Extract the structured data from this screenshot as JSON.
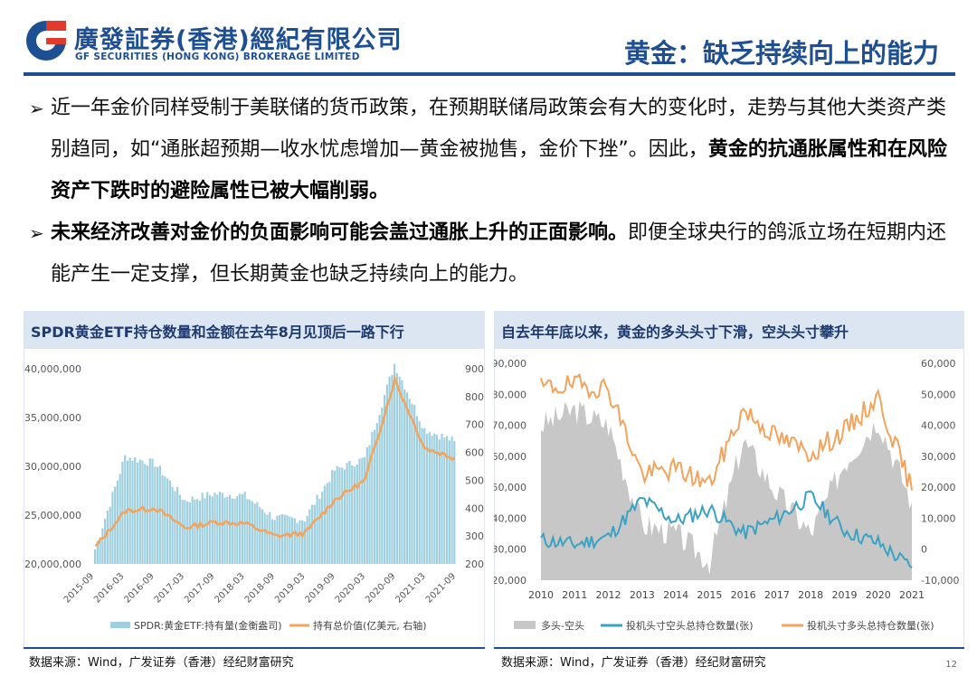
{
  "header": {
    "logo_cn": "廣發証券(香港)經紀有限公司",
    "logo_en": "GF SECURITIES (HONG KONG) BROKERAGE LIMITED",
    "title": "黄金：缺乏持续向上的能力"
  },
  "bullets": [
    {
      "marker": "➢",
      "plain_before": "近一年金价同样受制于美联储的货币政策，在预期联储局政策会有大的变化时，走势与其他大类资产类别趋同，如“通胀超预期—收水忧虑增加—黄金被抛售，金价下挫”。因此，",
      "bold": "黄金的抗通胀属性和在风险资产下跌时的避险属性已被大幅削弱。",
      "plain_after": ""
    },
    {
      "marker": "➢",
      "plain_before": "",
      "bold": "未来经济改善对金价的负面影响可能会盖过通胀上升的正面影响。",
      "plain_after": "即便全球央行的鸽派立场在短期内还能产生一定支撑，但长期黄金也缺乏持续向上的能力。"
    }
  ],
  "panels": {
    "left_title": "SPDR黄金ETF持仓数量和金额在去年8月见顶后一路下行",
    "right_title": "自去年年底以来，黄金的多头头寸下滑，空头头寸攀升",
    "left_source": "数据来源：Wind，广发证券（香港）经纪财富研究",
    "right_source": "数据来源：Wind，广发证券（香港）经纪财富研究"
  },
  "page_number": "12",
  "colors": {
    "brand_blue": "#1e4f93",
    "bar_teal": "#9fd0df",
    "line_orange": "#f3a35c",
    "gray_area": "#c7c7c7",
    "line_blue": "#3aa2c4"
  },
  "chart_data": [
    {
      "type": "bar",
      "title": "SPDR黄金ETF持仓数量和金额在去年8月见顶后一路下行",
      "ylim_left": [
        20000000,
        40000000
      ],
      "ylim_right": [
        200,
        900
      ],
      "y_ticks_left": [
        "20,000,000",
        "25,000,000",
        "30,000,000",
        "35,000,000",
        "40,000,000"
      ],
      "y_ticks_right": [
        "200",
        "300",
        "400",
        "500",
        "600",
        "700",
        "800",
        "900"
      ],
      "categories": [
        "2015-09",
        "2016-03",
        "2016-09",
        "2017-03",
        "2017-09",
        "2018-03",
        "2018-09",
        "2019-03",
        "2019-09",
        "2020-03",
        "2020-09",
        "2021-03",
        "2021-09"
      ],
      "series": [
        {
          "name": "SPDR:黄金ETF:持有量(金衡盎司)",
          "axis": "left",
          "render": "bar",
          "values": [
            21500000,
            31000000,
            30300000,
            26500000,
            27200000,
            27000000,
            24700000,
            24600000,
            29600000,
            30800000,
            40500000,
            33800000,
            32600000
          ]
        },
        {
          "name": "持有总价值(亿美元, 右轴)",
          "axis": "right",
          "render": "line",
          "values": [
            260,
            390,
            400,
            330,
            350,
            345,
            300,
            310,
            430,
            500,
            860,
            615,
            580
          ]
        }
      ]
    },
    {
      "type": "area",
      "title": "自去年年底以来，黄金的多头头寸下滑，空头头寸攀升",
      "ylim_left": [
        20000,
        90000
      ],
      "ylim_right": [
        -10000,
        60000
      ],
      "y_ticks_left": [
        "20,000",
        "30,000",
        "40,000",
        "50,000",
        "60,000",
        "70,000",
        "80,000",
        "90,000"
      ],
      "y_ticks_right": [
        "-10,000",
        "0",
        "10,000",
        "20,000",
        "30,000",
        "40,000",
        "50,000",
        "60,000"
      ],
      "categories": [
        "2010",
        "2011",
        "2012",
        "2013",
        "2014",
        "2015",
        "2016",
        "2017",
        "2018",
        "2019",
        "2020",
        "2021"
      ],
      "series": [
        {
          "name": "多头-空头",
          "axis": "left",
          "render": "area",
          "values": [
            70000,
            75000,
            70000,
            38000,
            35000,
            26000,
            65000,
            48000,
            35000,
            58000,
            72000,
            45000
          ]
        },
        {
          "name": "投机头寸空头总持仓数量(张)",
          "axis": "right",
          "render": "line",
          "values": [
            3000,
            1500,
            4000,
            16000,
            9000,
            13000,
            5000,
            10000,
            17000,
            6000,
            2000,
            -6000
          ]
        },
        {
          "name": "投机头寸多头总持仓数量(张)",
          "axis": "right",
          "render": "line",
          "values": [
            52000,
            53000,
            52000,
            24000,
            26000,
            21000,
            45000,
            36000,
            31000,
            38000,
            49000,
            19000
          ]
        }
      ]
    }
  ]
}
